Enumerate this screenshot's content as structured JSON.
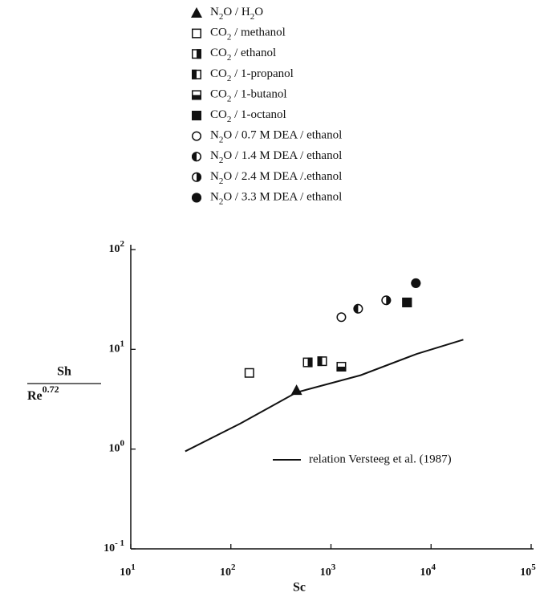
{
  "chart_data": {
    "type": "scatter",
    "xlabel": "Sc",
    "ylabel": {
      "numerator": "Sh",
      "denominator": "Re",
      "denominator_exp": "0.72"
    },
    "xscale": "log",
    "yscale": "log",
    "xlim": [
      10,
      100000
    ],
    "ylim": [
      0.1,
      100
    ],
    "xticks": [
      {
        "value": 10,
        "label": "10",
        "sup": "1"
      },
      {
        "value": 100,
        "label": "10",
        "sup": "2"
      },
      {
        "value": 1000,
        "label": "10",
        "sup": "3"
      },
      {
        "value": 10000,
        "label": "10",
        "sup": "4"
      },
      {
        "value": 100000,
        "label": "10",
        "sup": "5"
      }
    ],
    "yticks": [
      {
        "value": 0.1,
        "label": "10",
        "sup": "- 1"
      },
      {
        "value": 1,
        "label": "10",
        "sup": "0"
      },
      {
        "value": 10,
        "label": "10",
        "sup": "1"
      },
      {
        "value": 100,
        "label": "10",
        "sup": "2"
      }
    ],
    "grid": false,
    "color": "#111111",
    "series": [
      {
        "name": "N2O / H2O",
        "marker": "triangle",
        "fill": "full",
        "x": [
          453
        ],
        "values": [
          3.9
        ]
      },
      {
        "name": "CO2 / methanol",
        "marker": "square",
        "fill": "none",
        "x": [
          153
        ],
        "values": [
          5.8
        ]
      },
      {
        "name": "CO2 / ethanol",
        "marker": "square",
        "fill": "right",
        "x": [
          586
        ],
        "values": [
          7.4
        ]
      },
      {
        "name": "CO2 / 1-propanol",
        "marker": "square",
        "fill": "left",
        "x": [
          817
        ],
        "values": [
          7.6
        ]
      },
      {
        "name": "CO2 / 1-butanol",
        "marker": "square",
        "fill": "bottom",
        "x": [
          1270
        ],
        "values": [
          6.7
        ]
      },
      {
        "name": "CO2 / 1-octanol",
        "marker": "square",
        "fill": "full",
        "x": [
          5750
        ],
        "values": [
          29.5
        ]
      },
      {
        "name": "N2O / 0.7 M DEA / ethanol",
        "marker": "circle",
        "fill": "none",
        "x": [
          1270
        ],
        "values": [
          21
        ]
      },
      {
        "name": "N2O / 1.4 M DEA / ethanol",
        "marker": "circle",
        "fill": "left",
        "x": [
          1870
        ],
        "values": [
          25.5
        ]
      },
      {
        "name": "N2O / 2.4 M DEA /.ethanol",
        "marker": "circle",
        "fill": "right",
        "x": [
          3560
        ],
        "values": [
          31
        ]
      },
      {
        "name": "N2O / 3.3 M DEA / ethanol",
        "marker": "circle",
        "fill": "full",
        "x": [
          7050
        ],
        "values": [
          46
        ]
      }
    ],
    "line": {
      "name": "relation Versteeg et al. (1987)",
      "x": [
        35,
        124,
        453,
        1980,
        7200,
        21000
      ],
      "values": [
        0.95,
        1.8,
        3.7,
        5.5,
        9.0,
        12.5
      ]
    }
  }
}
